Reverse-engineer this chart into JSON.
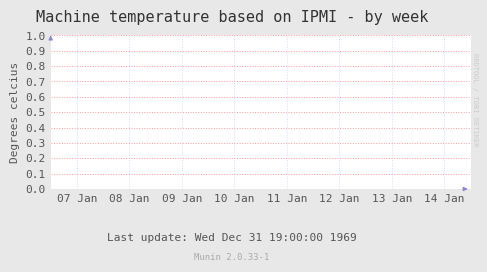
{
  "title": "Machine temperature based on IPMI - by week",
  "ylabel": "Degrees celcius",
  "background_color": "#e8e8e8",
  "plot_bg_color": "#ffffff",
  "grid_color": "#ff9999",
  "grid_color2": "#ccddff",
  "ylim": [
    0.0,
    1.0
  ],
  "yticks": [
    0.0,
    0.1,
    0.2,
    0.3,
    0.4,
    0.5,
    0.6,
    0.7,
    0.8,
    0.9,
    1.0
  ],
  "xtick_labels": [
    "07 Jan",
    "08 Jan",
    "09 Jan",
    "10 Jan",
    "11 Jan",
    "12 Jan",
    "13 Jan",
    "14 Jan"
  ],
  "xtick_positions": [
    0,
    1,
    2,
    3,
    4,
    5,
    6,
    7
  ],
  "xlim": [
    0,
    7
  ],
  "footer_text": "Last update: Wed Dec 31 19:00:00 1969",
  "footer_sub": "Munin 2.0.33-1",
  "right_label": "RRDTOOL / TOBI OETIKER",
  "title_fontsize": 11,
  "axis_fontsize": 8,
  "tick_fontsize": 8,
  "footer_fontsize": 8,
  "arrow_color": "#8888cc"
}
